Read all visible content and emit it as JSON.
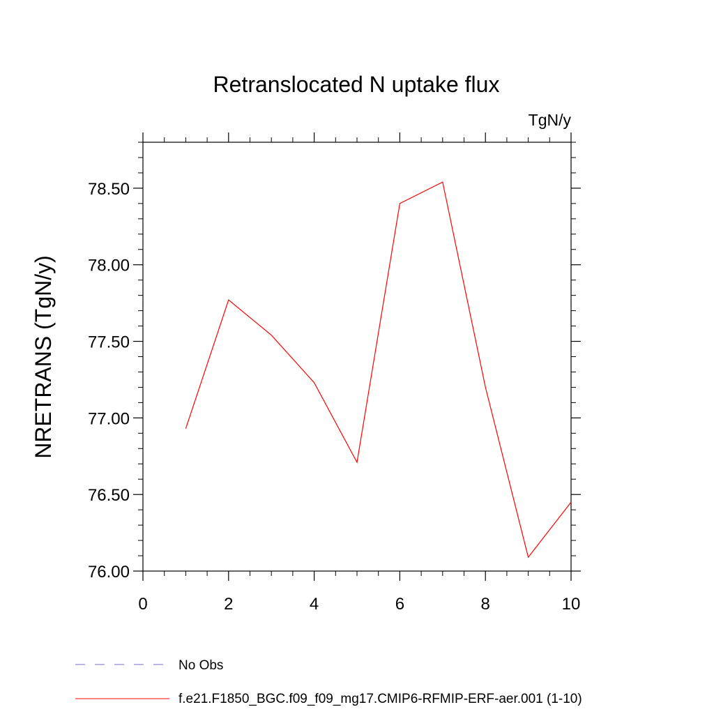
{
  "chart_data": {
    "type": "line",
    "title": "Retranslocated N uptake flux",
    "units_label": "TgN/y",
    "ylabel": "NRETRANS  (TgN/y)",
    "xlabel": "",
    "xlim": [
      0,
      10
    ],
    "ylim": [
      76.0,
      78.8
    ],
    "x_ticks": [
      0,
      2,
      4,
      6,
      8,
      10
    ],
    "x_tick_labels": [
      "0",
      "2",
      "4",
      "6",
      "8",
      "10"
    ],
    "y_ticks": [
      76.0,
      76.5,
      77.0,
      77.5,
      78.0,
      78.5
    ],
    "y_tick_labels": [
      "76.00",
      "76.50",
      "77.00",
      "77.50",
      "78.00",
      "78.50"
    ],
    "grid": false,
    "legend_position": "bottom",
    "series": [
      {
        "name": "f.e21.F1850_BGC.f09_f09_mg17.CMIP6-RFMIP-ERF-aer.001 (1-10)",
        "color": "#ff0000",
        "style": "solid",
        "x": [
          1,
          2,
          3,
          4,
          5,
          6,
          7,
          8,
          9,
          10
        ],
        "y": [
          76.93,
          77.77,
          77.54,
          77.23,
          76.71,
          78.4,
          78.54,
          77.2,
          76.09,
          76.45
        ]
      }
    ],
    "legend": [
      {
        "label": "No Obs",
        "color": "#7b68c8",
        "style": "dashed"
      },
      {
        "label": "f.e21.F1850_BGC.f09_f09_mg17.CMIP6-RFMIP-ERF-aer.001 (1-10)",
        "color": "#ff0000",
        "style": "solid"
      }
    ]
  }
}
